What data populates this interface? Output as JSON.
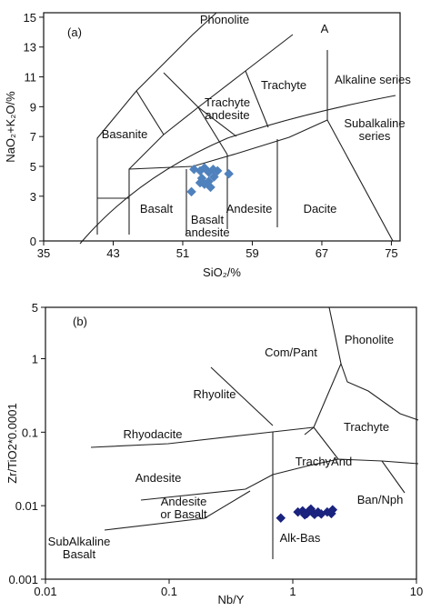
{
  "chart_data": [
    {
      "type": "scatter",
      "panel_label": "(a)",
      "xlabel": "SiO₂/%",
      "ylabel": "NaO₂+K₂O/%",
      "x": [
        52.3,
        53.0,
        53.5,
        54.0,
        54.5,
        55.0,
        56.3,
        53.2,
        54.0,
        54.6,
        53.5,
        54.2,
        52.0,
        53.0
      ],
      "values": [
        4.8,
        4.7,
        4.9,
        4.6,
        4.8,
        4.7,
        4.5,
        4.2,
        4.0,
        4.3,
        3.8,
        3.6,
        3.3,
        3.9
      ],
      "color": "#4f81bd",
      "marker": "diamond",
      "log_scale": false,
      "xlim": [
        35,
        76
      ],
      "ylim": [
        0,
        15.3
      ],
      "xticks": [
        35,
        43,
        51,
        59,
        67,
        75
      ],
      "yticks": [
        0,
        3,
        5,
        7,
        9,
        11,
        13,
        15
      ],
      "annotations": [
        "Phonolite",
        "A",
        "Trachyte",
        "Alkaline series",
        "Trachyte\nandesite",
        "Basanite",
        "Subalkaline\nseries",
        "Basalt",
        "Basalt\nandesite",
        "Andesite",
        "Dacite"
      ]
    },
    {
      "type": "scatter",
      "panel_label": "(b)",
      "xlabel": "Nb/Y",
      "ylabel": "Zr/TiO2*0.0001",
      "x": [
        0.8,
        1.1,
        1.2,
        1.3,
        1.35,
        1.45,
        1.5,
        1.6,
        1.7,
        1.9,
        2.1,
        2.05,
        1.25,
        1.4
      ],
      "values": [
        0.0068,
        0.0082,
        0.0085,
        0.0078,
        0.0085,
        0.008,
        0.0076,
        0.0082,
        0.0077,
        0.0082,
        0.0088,
        0.0078,
        0.0075,
        0.009
      ],
      "color": "#1a237e",
      "marker": "diamond",
      "log_scale": true,
      "xlim": [
        0.01,
        10
      ],
      "ylim": [
        0.001,
        5
      ],
      "xticks": [
        0.01,
        0.1,
        1,
        10
      ],
      "yticks": [
        0.001,
        0.01,
        0.1,
        1,
        5
      ],
      "annotations": [
        "Phonolite",
        "Com/Pant",
        "Rhyolite",
        "Trachyte",
        "Rhyodacite",
        "TrachyAnd",
        "Andesite",
        "Andesite\nor Basalt",
        "Ban/Nph",
        "SubAlkaline\nBasalt",
        "Alk-Bas"
      ]
    }
  ]
}
